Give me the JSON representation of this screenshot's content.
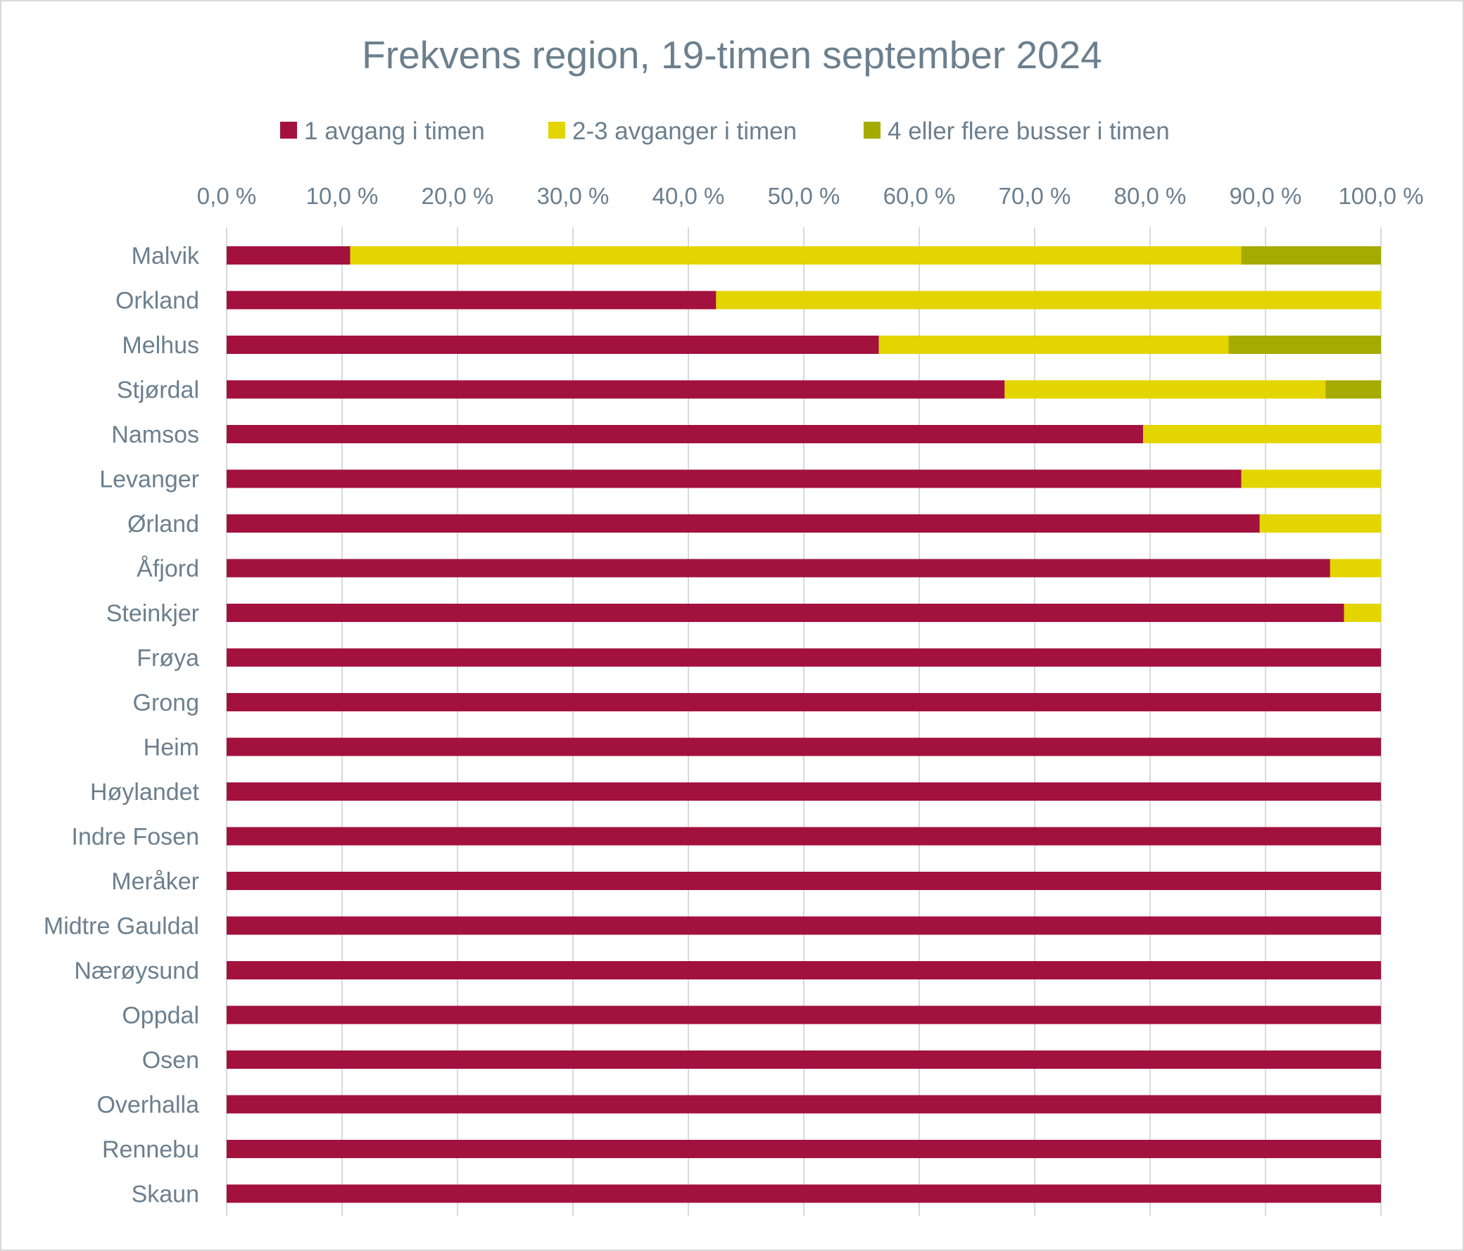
{
  "chart_data": {
    "type": "bar",
    "orientation": "horizontal",
    "stacked": true,
    "title": "Frekvens region, 19-timen september 2024",
    "xlabel": "",
    "ylabel": "",
    "xlim": [
      0,
      100
    ],
    "x_ticks": [
      "0,0 %",
      "10,0 %",
      "20,0 %",
      "30,0 %",
      "40,0 %",
      "50,0 %",
      "60,0 %",
      "70,0 %",
      "80,0 %",
      "90,0 %",
      "100,0 %"
    ],
    "x_axis_position": "top",
    "grid": true,
    "legend_position": "top",
    "categories": [
      "Malvik",
      "Orkland",
      "Melhus",
      "Stjørdal",
      "Namsos",
      "Levanger",
      "Ørland",
      "Åfjord",
      "Steinkjer",
      "Frøya",
      "Grong",
      "Heim",
      "Høylandet",
      "Indre Fosen",
      "Meråker",
      "Midtre Gauldal",
      "Nærøysund",
      "Oppdal",
      "Osen",
      "Overhalla",
      "Rennebu",
      "Skaun"
    ],
    "series": [
      {
        "name": "1 avgang i timen",
        "color": "#a3113f",
        "values": [
          10.7,
          42.4,
          56.5,
          67.4,
          79.4,
          87.9,
          89.5,
          95.6,
          96.8,
          100,
          100,
          100,
          100,
          100,
          100,
          100,
          100,
          100,
          100,
          100,
          100,
          100
        ]
      },
      {
        "name": "2-3 avganger i timen",
        "color": "#e2d500",
        "values": [
          77.2,
          57.6,
          30.3,
          27.8,
          20.6,
          12.1,
          10.5,
          4.4,
          3.2,
          0,
          0,
          0,
          0,
          0,
          0,
          0,
          0,
          0,
          0,
          0,
          0,
          0
        ]
      },
      {
        "name": "4 eller flere busser i timen",
        "color": "#a6ab00",
        "values": [
          12.1,
          0,
          13.2,
          4.8,
          0,
          0,
          0,
          0,
          0,
          0,
          0,
          0,
          0,
          0,
          0,
          0,
          0,
          0,
          0,
          0,
          0,
          0
        ]
      }
    ]
  },
  "colors": {
    "text": "#6b7f8e",
    "grid": "#d9d9d9",
    "border": "#d9d9d9"
  }
}
